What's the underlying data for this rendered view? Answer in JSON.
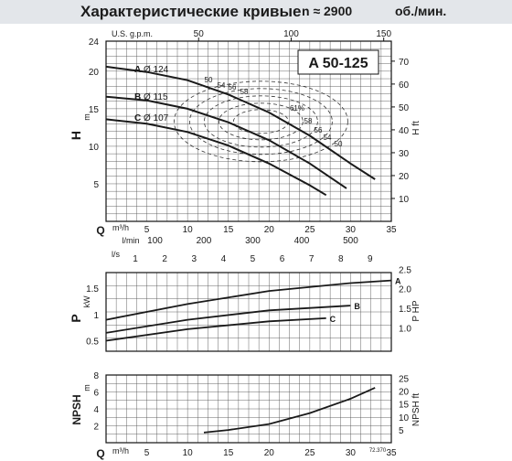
{
  "header": {
    "title": "Характеристические кривые",
    "speed": "n ≈ 2900",
    "speed_unit": "об./мин."
  },
  "model_label": "A 50-125",
  "figure_code": "72.370",
  "axes": {
    "gpm_label": "U.S. g.p.m.",
    "gpm_ticks": [
      50,
      100,
      150
    ],
    "h_label": "H",
    "h_unit": "m",
    "h_ticks": [
      5,
      10,
      15,
      20,
      24
    ],
    "hft_label": "H ft",
    "hft_ticks": [
      10,
      20,
      30,
      40,
      50,
      60,
      70
    ],
    "q_label": "Q",
    "q_unit": "m³/h",
    "q_ticks": [
      5,
      10,
      15,
      20,
      25,
      30,
      35
    ],
    "lmin_label": "l/min",
    "lmin_ticks": [
      100,
      200,
      300,
      400,
      500
    ],
    "ls_label": "l/s",
    "ls_ticks": [
      1,
      2,
      3,
      4,
      5,
      6,
      7,
      8,
      9
    ],
    "p_label": "P",
    "p_unit": "kW",
    "p_ticks": [
      0.5,
      1,
      1.5
    ],
    "php_label": "P HP",
    "php_ticks": [
      1.0,
      1.5,
      2.0,
      2.5
    ],
    "npsh_label": "NPSH",
    "npsh_unit": "m",
    "npsh_ticks": [
      2,
      4,
      6,
      8
    ],
    "npshft_label": "NPSH ft",
    "npshft_ticks": [
      5,
      10,
      15,
      20,
      25
    ]
  },
  "colors": {
    "curve": "#1a1a1a",
    "grid": "#555555",
    "dashed": "#333333",
    "header_bg": "#e3e6ea"
  },
  "chart_data": [
    {
      "type": "line",
      "title": "A 50-125",
      "xlabel": "Q m³/h",
      "ylabel": "H m",
      "xlim": [
        0,
        35
      ],
      "ylim": [
        0,
        24
      ],
      "grid": true,
      "series": [
        {
          "name": "A Ø 124",
          "x": [
            0,
            5,
            10,
            15,
            20,
            25,
            30,
            33
          ],
          "y": [
            20.6,
            19.9,
            18.8,
            16.9,
            14.5,
            11.4,
            7.7,
            5.6
          ]
        },
        {
          "name": "B Ø 115",
          "x": [
            0,
            5,
            10,
            15,
            20,
            25,
            29.5
          ],
          "y": [
            16.6,
            16.1,
            15.0,
            13.2,
            10.8,
            7.7,
            4.4
          ]
        },
        {
          "name": "C Ø 107",
          "x": [
            0,
            5,
            10,
            15,
            20,
            25,
            27
          ],
          "y": [
            13.6,
            13.0,
            11.9,
            10.1,
            7.7,
            4.8,
            3.5
          ]
        }
      ],
      "efficiency_labels": [
        "50",
        "54",
        "56",
        "58",
        "61%",
        "58",
        "56",
        "54",
        "50"
      ]
    },
    {
      "type": "line",
      "xlabel": "Q m³/h",
      "ylabel": "P kW",
      "xlim": [
        0,
        35
      ],
      "ylim": [
        0.3,
        1.8
      ],
      "grid": true,
      "series": [
        {
          "name": "A",
          "x": [
            0,
            10,
            20,
            30,
            35
          ],
          "y": [
            0.9,
            1.2,
            1.45,
            1.6,
            1.65
          ]
        },
        {
          "name": "B",
          "x": [
            0,
            10,
            20,
            30
          ],
          "y": [
            0.65,
            0.9,
            1.08,
            1.17
          ]
        },
        {
          "name": "C",
          "x": [
            0,
            10,
            20,
            27
          ],
          "y": [
            0.5,
            0.72,
            0.87,
            0.93
          ]
        }
      ]
    },
    {
      "type": "line",
      "xlabel": "Q m³/h",
      "ylabel": "NPSH m",
      "xlim": [
        0,
        35
      ],
      "ylim": [
        0,
        8
      ],
      "grid": true,
      "series": [
        {
          "x": [
            12,
            15,
            20,
            25,
            30,
            33
          ],
          "y": [
            1.2,
            1.5,
            2.2,
            3.5,
            5.2,
            6.5
          ]
        }
      ]
    }
  ]
}
